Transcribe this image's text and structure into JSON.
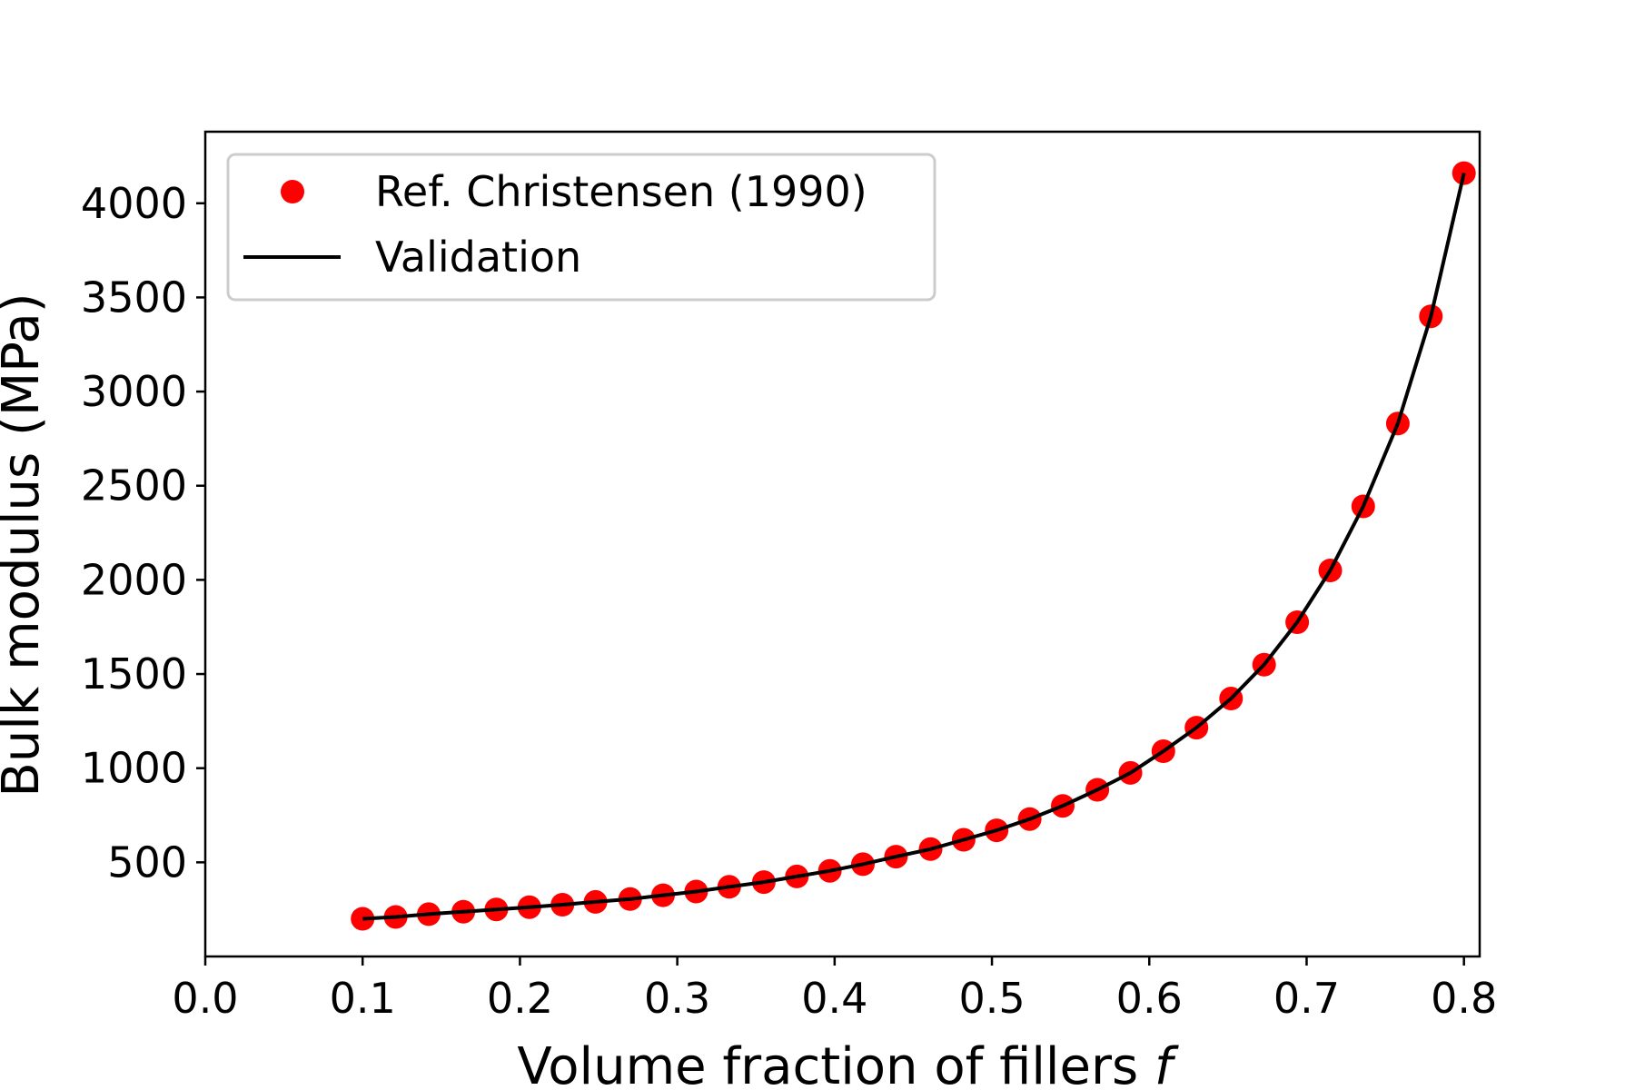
{
  "chart_data": {
    "type": "scatter",
    "xlabel": "Volume fraction of fillers",
    "xlabel_var": "f",
    "ylabel": "Bulk modulus (MPa)",
    "xlim": [
      0.0,
      0.81
    ],
    "ylim": [
      0,
      4380
    ],
    "xticks": [
      "0.0",
      "0.1",
      "0.2",
      "0.3",
      "0.4",
      "0.5",
      "0.6",
      "0.7",
      "0.8"
    ],
    "yticks": [
      "500",
      "1000",
      "1500",
      "2000",
      "2500",
      "3000",
      "3500",
      "4000"
    ],
    "grid": false,
    "legend_position": "top-left",
    "series": [
      {
        "name": "Ref. Christensen (1990)",
        "kind": "scatter",
        "color": "#ff0000",
        "x": [
          0.1,
          0.121,
          0.142,
          0.164,
          0.185,
          0.206,
          0.227,
          0.248,
          0.27,
          0.291,
          0.312,
          0.333,
          0.355,
          0.376,
          0.397,
          0.418,
          0.439,
          0.461,
          0.482,
          0.503,
          0.524,
          0.545,
          0.567,
          0.588,
          0.609,
          0.63,
          0.652,
          0.673,
          0.694,
          0.715,
          0.736,
          0.758,
          0.779,
          0.8
        ],
        "y": [
          200,
          210,
          225,
          238,
          250,
          262,
          275,
          290,
          305,
          325,
          345,
          370,
          395,
          425,
          455,
          490,
          530,
          570,
          620,
          670,
          730,
          800,
          885,
          975,
          1090,
          1215,
          1370,
          1550,
          1775,
          2050,
          2390,
          2830,
          3400,
          4160
        ]
      },
      {
        "name": "Validation",
        "kind": "line",
        "color": "#000000",
        "x": [
          0.1,
          0.121,
          0.142,
          0.164,
          0.185,
          0.206,
          0.227,
          0.248,
          0.27,
          0.291,
          0.312,
          0.333,
          0.355,
          0.376,
          0.397,
          0.418,
          0.439,
          0.461,
          0.482,
          0.503,
          0.524,
          0.545,
          0.567,
          0.588,
          0.609,
          0.63,
          0.652,
          0.673,
          0.694,
          0.715,
          0.736,
          0.758,
          0.779,
          0.8
        ],
        "y": [
          200,
          210,
          225,
          238,
          250,
          262,
          275,
          290,
          305,
          325,
          345,
          370,
          395,
          425,
          455,
          490,
          530,
          570,
          620,
          670,
          730,
          800,
          885,
          975,
          1090,
          1215,
          1370,
          1550,
          1775,
          2050,
          2390,
          2830,
          3400,
          4160
        ]
      }
    ]
  }
}
